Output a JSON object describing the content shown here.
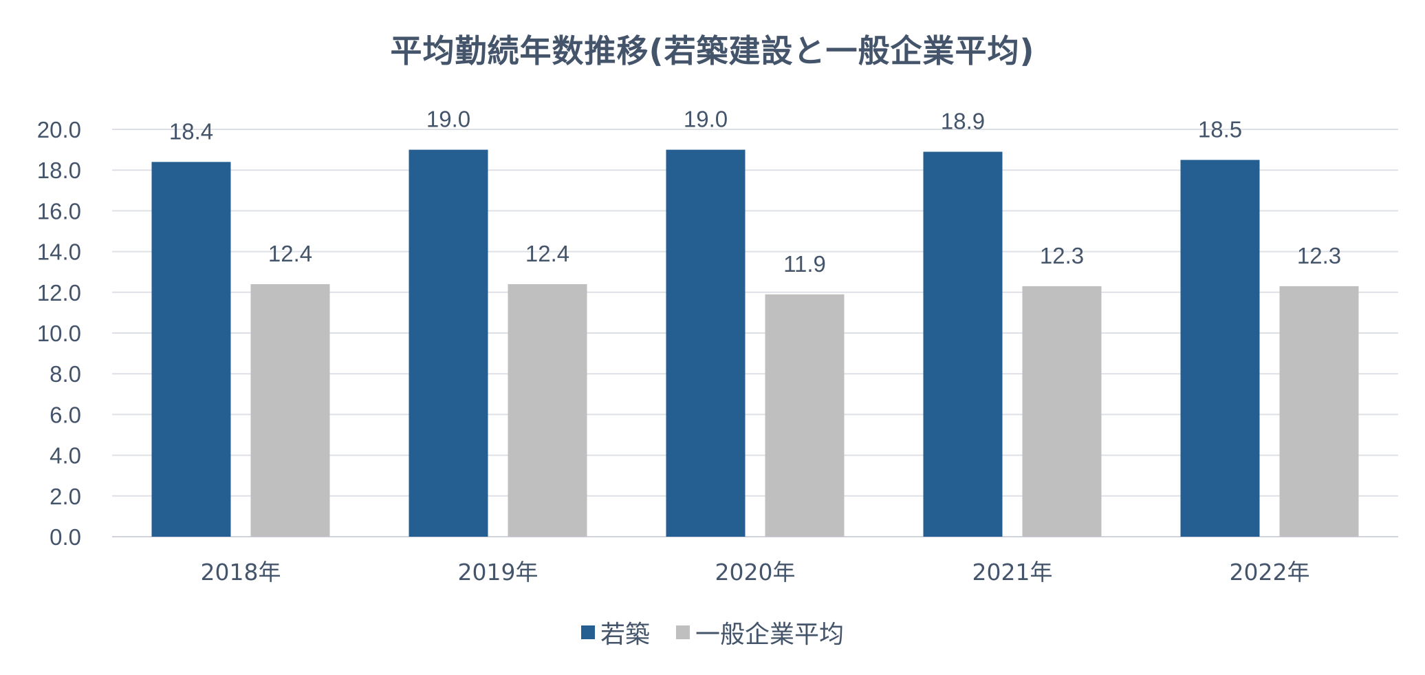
{
  "chart_data": {
    "type": "bar",
    "title": "平均勤続年数推移(若築建設と一般企業平均)",
    "categories": [
      "2018年",
      "2019年",
      "2020年",
      "2021年",
      "2022年"
    ],
    "series": [
      {
        "name": "若築",
        "values": [
          18.4,
          19.0,
          19.0,
          18.9,
          18.5
        ],
        "labels": [
          "18.4",
          "19.0",
          "19.0",
          "18.9",
          "18.5"
        ],
        "color": "#255e91"
      },
      {
        "name": "一般企業平均",
        "values": [
          12.4,
          12.4,
          11.9,
          12.3,
          12.3
        ],
        "labels": [
          "12.4",
          "12.4",
          "11.9",
          "12.3",
          "12.3"
        ],
        "color": "#bfbfbf"
      }
    ],
    "ylim": [
      0,
      20
    ],
    "yticks": [
      "0.0",
      "2.0",
      "4.0",
      "6.0",
      "8.0",
      "10.0",
      "12.0",
      "14.0",
      "16.0",
      "18.0",
      "20.0"
    ],
    "grid": true,
    "legend_position": "bottom",
    "xlabel": "",
    "ylabel": ""
  }
}
